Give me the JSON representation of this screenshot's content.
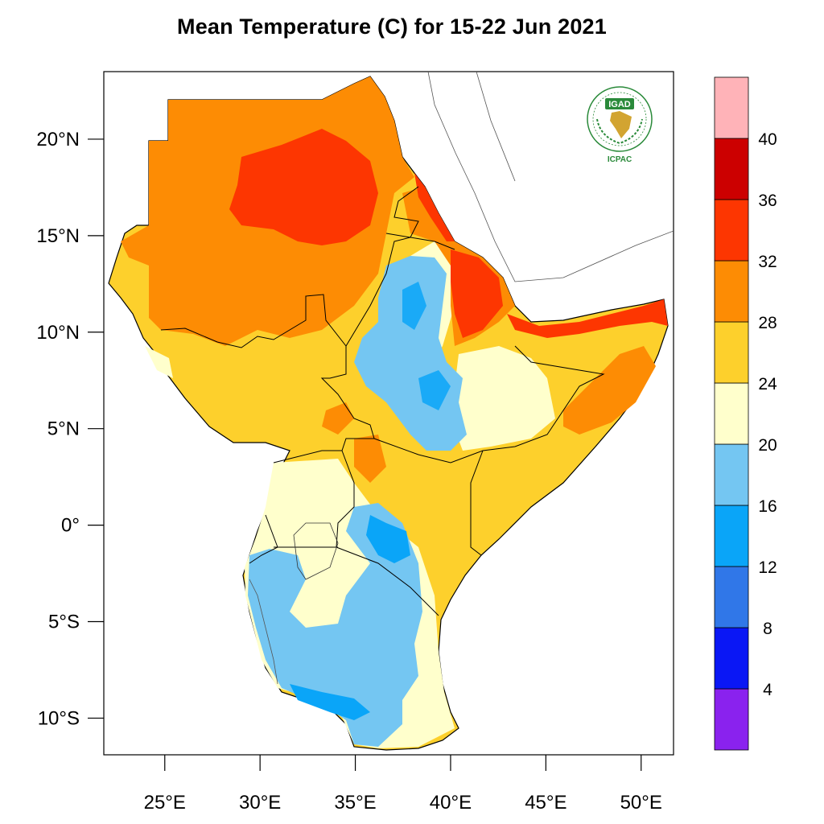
{
  "title": "Mean Temperature (C) for 15-22 Jun 2021",
  "logo": {
    "name": "IGAD",
    "org": "ICPAC",
    "color": "#2a8a3a"
  },
  "axes": {
    "lat_labels": [
      "20°N",
      "15°N",
      "10°N",
      "5°N",
      "0°",
      "5°S",
      "10°S"
    ],
    "lat_values": [
      20,
      15,
      10,
      5,
      0,
      -5,
      -10
    ],
    "lon_labels": [
      "25°E",
      "30°E",
      "35°E",
      "40°E",
      "45°E",
      "50°E"
    ],
    "lon_values": [
      25,
      30,
      35,
      40,
      45,
      50
    ],
    "lat_range": [
      -11.9,
      23.5
    ],
    "lon_range": [
      21.8,
      51.7
    ]
  },
  "colorbar": {
    "levels": [
      "4",
      "8",
      "12",
      "16",
      "20",
      "24",
      "28",
      "32",
      "36",
      "40"
    ],
    "colors": [
      "#8a22ee",
      "#0a17f5",
      "#0b25f7",
      "#3077e8",
      "#0aa5f8",
      "#74c6f2",
      "#ffffcc",
      "#fdd02c",
      "#fd8c04",
      "#fd3601",
      "#cc0000",
      "#ffb3b8"
    ]
  }
}
